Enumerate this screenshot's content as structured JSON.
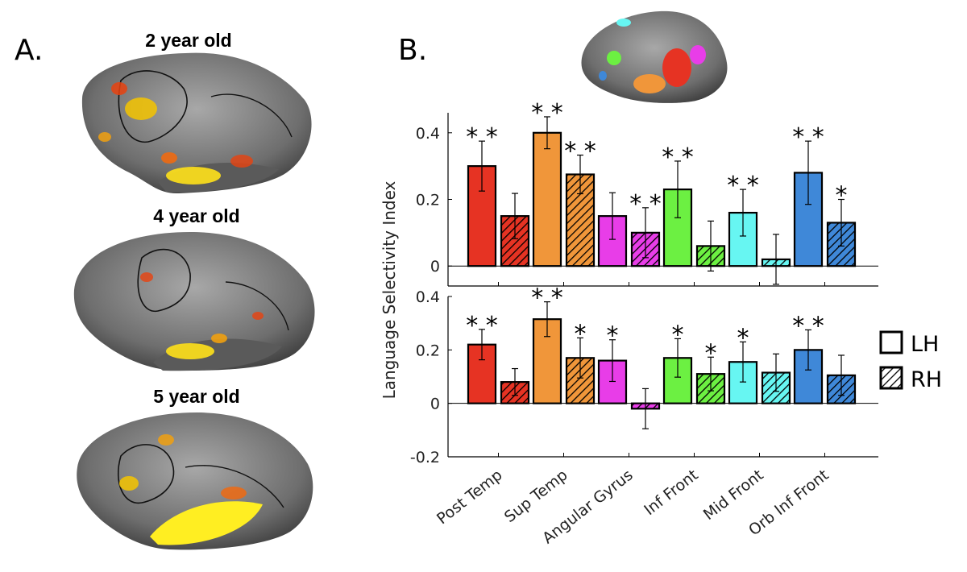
{
  "panel_a": {
    "letter": "A.",
    "ages": [
      "2 year old",
      "4 year old",
      "5 year old"
    ]
  },
  "panel_b": {
    "letter": "B."
  },
  "colors": {
    "Post Temp": "#e63323",
    "Sup Temp": "#f0963a",
    "Angular Gyrus": "#e83de8",
    "Inf Front": "#6cf042",
    "Mid Front": "#67f6f2",
    "Orb Inf Front": "#3f88d8"
  },
  "chart_data": [
    {
      "type": "bar",
      "panel": "top",
      "ylabel": "Language Selectivity Index",
      "ylim": [
        -0.06,
        0.46
      ],
      "yticks": [
        0,
        0.2,
        0.4
      ],
      "ytick_labels": [
        "0",
        "0.2",
        "0.4"
      ],
      "categories": [
        "Post Temp",
        "Sup Temp",
        "Angular Gyrus",
        "Inf Front",
        "Mid Front",
        "Orb Inf Front"
      ],
      "series": [
        {
          "name": "LH",
          "values": [
            0.3,
            0.4,
            0.15,
            0.23,
            0.16,
            0.28
          ],
          "errors": [
            0.075,
            0.048,
            0.07,
            0.085,
            0.07,
            0.095
          ],
          "sig": [
            "**",
            "**",
            "",
            "**",
            "**",
            "**"
          ]
        },
        {
          "name": "RH",
          "values": [
            0.15,
            0.275,
            0.1,
            0.06,
            0.02,
            0.13
          ],
          "errors": [
            0.068,
            0.058,
            0.075,
            0.075,
            0.075,
            0.07
          ],
          "sig": [
            "",
            "**",
            "**",
            "",
            "",
            "*"
          ]
        }
      ]
    },
    {
      "type": "bar",
      "panel": "bottom",
      "ylim": [
        -0.2,
        0.4
      ],
      "yticks": [
        -0.2,
        0,
        0.2,
        0.4
      ],
      "ytick_labels": [
        "-0.2",
        "0",
        "0.2",
        "0.4"
      ],
      "categories": [
        "Post Temp",
        "Sup Temp",
        "Angular Gyrus",
        "Inf Front",
        "Mid Front",
        "Orb Inf Front"
      ],
      "series": [
        {
          "name": "LH",
          "values": [
            0.22,
            0.315,
            0.16,
            0.17,
            0.155,
            0.2
          ],
          "errors": [
            0.057,
            0.065,
            0.078,
            0.072,
            0.075,
            0.075
          ],
          "sig": [
            "**",
            "**",
            "*",
            "*",
            "*",
            "**"
          ]
        },
        {
          "name": "RH",
          "values": [
            0.08,
            0.17,
            -0.02,
            0.11,
            0.115,
            0.105
          ],
          "errors": [
            0.05,
            0.075,
            0.075,
            0.063,
            0.07,
            0.075
          ],
          "sig": [
            "",
            "*",
            "",
            "*",
            "",
            ""
          ]
        }
      ],
      "legend": [
        "LH",
        "RH"
      ]
    }
  ]
}
